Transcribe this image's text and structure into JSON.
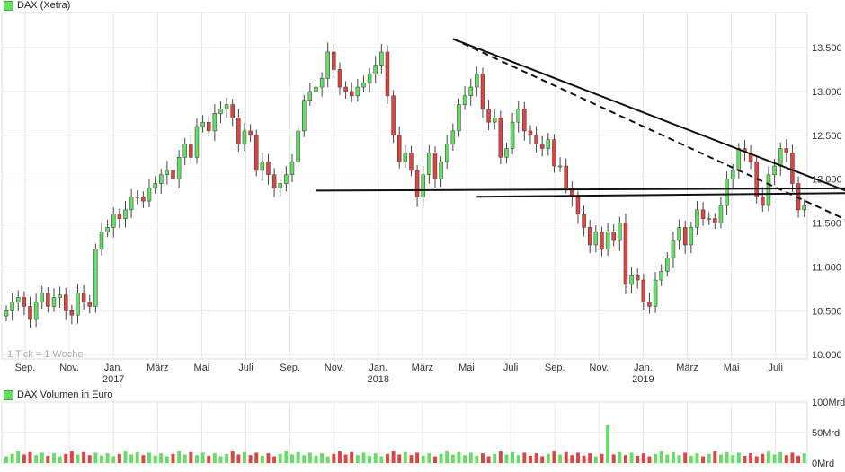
{
  "colors": {
    "up": "#66dd66",
    "down": "#dd4444",
    "wick": "#444444",
    "grid": "#e6e6e6",
    "trend": "#111111"
  },
  "chart_data": [
    {
      "type": "candlestick",
      "title": "DAX (Xetra)",
      "note": "1 Tick = 1 Woche",
      "y_ticks": [
        "10.000",
        "10.500",
        "11.000",
        "11.500",
        "12.000",
        "12.500",
        "13.000",
        "13.500"
      ],
      "ylim": [
        9950,
        13900
      ],
      "x_ticks": [
        {
          "label": "Sep.",
          "year": ""
        },
        {
          "label": "Nov.",
          "year": ""
        },
        {
          "label": "Jan.",
          "year": "2017"
        },
        {
          "label": "März",
          "year": ""
        },
        {
          "label": "Mai",
          "year": ""
        },
        {
          "label": "Juli",
          "year": ""
        },
        {
          "label": "Sep.",
          "year": ""
        },
        {
          "label": "Nov.",
          "year": ""
        },
        {
          "label": "Jan.",
          "year": "2018"
        },
        {
          "label": "März",
          "year": ""
        },
        {
          "label": "Mai",
          "year": ""
        },
        {
          "label": "Juli",
          "year": ""
        },
        {
          "label": "Sep.",
          "year": ""
        },
        {
          "label": "Nov.",
          "year": ""
        },
        {
          "label": "Jan.",
          "year": "2019"
        },
        {
          "label": "März",
          "year": ""
        },
        {
          "label": "Mai",
          "year": ""
        },
        {
          "label": "Juli",
          "year": ""
        }
      ],
      "period": "2016-08 to 2019-08, weekly",
      "weekly_close": [
        10500,
        10600,
        10650,
        10550,
        10400,
        10600,
        10700,
        10550,
        10650,
        10680,
        10500,
        10450,
        10700,
        10600,
        10550,
        11200,
        11400,
        11450,
        11600,
        11550,
        11650,
        11800,
        11800,
        11750,
        11900,
        11950,
        12050,
        12100,
        12000,
        12250,
        12400,
        12250,
        12600,
        12650,
        12550,
        12750,
        12800,
        12850,
        12700,
        12400,
        12550,
        12500,
        12100,
        12200,
        12050,
        11900,
        11950,
        12050,
        12200,
        12550,
        12900,
        13000,
        13050,
        13150,
        13450,
        13250,
        13050,
        13000,
        12950,
        13050,
        13100,
        13200,
        13300,
        13450,
        12950,
        12500,
        12200,
        12300,
        12100,
        11800,
        12050,
        12300,
        12000,
        12200,
        12400,
        12550,
        12850,
        12950,
        13050,
        13200,
        12800,
        12650,
        12700,
        12250,
        12350,
        12650,
        12800,
        12550,
        12500,
        12400,
        12350,
        12450,
        12150,
        12150,
        11900,
        11800,
        11600,
        11450,
        11250,
        11400,
        11200,
        11400,
        11300,
        11500,
        10800,
        10900,
        10850,
        10600,
        10550,
        10850,
        10950,
        11100,
        11300,
        11450,
        11250,
        11450,
        11650,
        11550,
        11550,
        11500,
        11700,
        12000,
        12100,
        12350,
        12300,
        12200,
        11800,
        11700,
        12050,
        12150,
        12350,
        12300,
        11950,
        11650,
        11700
      ],
      "volume_unit": "Mrd",
      "volume_ticks": [
        "100Mrd",
        "50Mrd",
        "0Mrd"
      ],
      "volume_ylim": [
        0,
        100
      ],
      "volume_typical": 15,
      "volume_spike": {
        "week": 101,
        "value": 62
      },
      "trendlines": [
        {
          "style": "solid",
          "from": {
            "week": 75,
            "value": 13600
          },
          "to": {
            "week": 155,
            "value": 11500
          }
        },
        {
          "style": "dashed",
          "from": {
            "week": 75,
            "value": 13600
          },
          "to": {
            "week": 155,
            "value": 11100
          }
        },
        {
          "style": "solid",
          "from": {
            "week": 52,
            "value": 11870
          },
          "to": {
            "week": 155,
            "value": 11900
          }
        },
        {
          "style": "solid",
          "from": {
            "week": 79,
            "value": 11800
          },
          "to": {
            "week": 155,
            "value": 11850
          }
        }
      ]
    }
  ],
  "volume_panel": {
    "title": "DAX Volumen in Euro"
  }
}
